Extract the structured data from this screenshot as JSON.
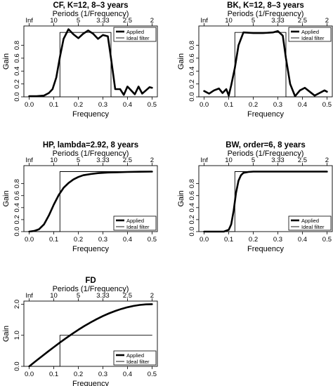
{
  "chart_data": [
    {
      "type": "line",
      "title": "CF, K=12, 8–3 years",
      "xlabel": "Frequency",
      "ylabel": "Gain",
      "toplabel": "Periods (1/Frequency)",
      "xlim": [
        0,
        0.5
      ],
      "ylim": [
        0,
        1.1
      ],
      "x_ticks": [
        "0.0",
        "0.1",
        "0.2",
        "0.3",
        "0.4",
        "0.5"
      ],
      "y_ticks": [
        "0.0",
        "0.2",
        "0.4",
        "0.6",
        "0.8"
      ],
      "top_ticks": [
        "Inf",
        "10",
        "5",
        "3.33",
        "2.5",
        "2"
      ],
      "legend": {
        "position": "top-right",
        "entries": [
          "Applied",
          "Ideal filter"
        ]
      },
      "cutoffs": [
        0.125,
        0.333
      ],
      "series": [
        {
          "name": "Applied",
          "x": [
            0,
            0.03,
            0.06,
            0.08,
            0.095,
            0.11,
            0.125,
            0.14,
            0.16,
            0.18,
            0.2,
            0.22,
            0.24,
            0.26,
            0.28,
            0.3,
            0.32,
            0.333,
            0.35,
            0.37,
            0.385,
            0.4,
            0.415,
            0.43,
            0.445,
            0.46,
            0.475,
            0.49,
            0.5
          ],
          "y": [
            0.01,
            0.01,
            0.02,
            0.06,
            0.12,
            0.3,
            0.62,
            0.9,
            1.05,
            0.97,
            0.91,
            0.98,
            1.03,
            0.98,
            0.9,
            0.96,
            0.94,
            0.6,
            0.12,
            0.12,
            0.03,
            0.16,
            0.1,
            0.04,
            0.16,
            0.05,
            0.1,
            0.15,
            0.14
          ]
        },
        {
          "name": "Ideal filter",
          "x": [
            0,
            0.125,
            0.125,
            0.333,
            0.333,
            0.5
          ],
          "y": [
            0,
            0,
            1,
            1,
            0,
            0
          ]
        }
      ]
    },
    {
      "type": "line",
      "title": "BK, K=12, 8–3 years",
      "xlabel": "Frequency",
      "ylabel": "Gain",
      "toplabel": "Periods (1/Frequency)",
      "xlim": [
        0,
        0.5
      ],
      "ylim": [
        0,
        1.1
      ],
      "x_ticks": [
        "0.0",
        "0.1",
        "0.2",
        "0.3",
        "0.4",
        "0.5"
      ],
      "y_ticks": [
        "0.0",
        "0.2",
        "0.4",
        "0.6",
        "0.8"
      ],
      "top_ticks": [
        "Inf",
        "10",
        "5",
        "3.33",
        "2.5",
        "2"
      ],
      "legend": {
        "position": "top-right",
        "entries": [
          "Applied",
          "Ideal filter"
        ]
      },
      "cutoffs": [
        0.125,
        0.333
      ],
      "series": [
        {
          "name": "Applied",
          "x": [
            0,
            0.02,
            0.04,
            0.06,
            0.075,
            0.09,
            0.1,
            0.11,
            0.125,
            0.14,
            0.16,
            0.2,
            0.24,
            0.28,
            0.3,
            0.32,
            0.333,
            0.35,
            0.37,
            0.39,
            0.41,
            0.43,
            0.45,
            0.47,
            0.49,
            0.5
          ],
          "y": [
            0.09,
            0.05,
            0.1,
            0.13,
            0.06,
            0.12,
            0.02,
            0.18,
            0.45,
            0.8,
            1.0,
            0.99,
            0.99,
            1.0,
            1.02,
            0.95,
            0.6,
            0.2,
            0.01,
            0.1,
            0.14,
            0.08,
            0.02,
            0.06,
            0.1,
            0.08
          ]
        },
        {
          "name": "Ideal filter",
          "x": [
            0,
            0.125,
            0.125,
            0.333,
            0.333,
            0.5
          ],
          "y": [
            0,
            0,
            1,
            1,
            0,
            0
          ]
        }
      ]
    },
    {
      "type": "line",
      "title": "HP, lambda=2.92, 8 years",
      "xlabel": "Frequency",
      "ylabel": "Gain",
      "toplabel": "Periods (1/Frequency)",
      "xlim": [
        0,
        0.5
      ],
      "ylim": [
        0,
        1.1
      ],
      "x_ticks": [
        "0.0",
        "0.1",
        "0.2",
        "0.3",
        "0.4",
        "0.5"
      ],
      "y_ticks": [
        "0.0",
        "0.2",
        "0.4",
        "0.6",
        "0.8"
      ],
      "top_ticks": [
        "Inf",
        "10",
        "5",
        "3.33",
        "2.5",
        "2"
      ],
      "legend": {
        "position": "bottom-right",
        "entries": [
          "Applied",
          "Ideal filter"
        ]
      },
      "cutoffs": [
        0.125
      ],
      "series": [
        {
          "name": "Applied",
          "x": [
            0,
            0.02,
            0.04,
            0.06,
            0.08,
            0.1,
            0.12,
            0.14,
            0.16,
            0.18,
            0.2,
            0.22,
            0.25,
            0.28,
            0.32,
            0.36,
            0.4,
            0.45,
            0.5
          ],
          "y": [
            0.0,
            0.01,
            0.04,
            0.12,
            0.27,
            0.45,
            0.61,
            0.73,
            0.81,
            0.87,
            0.91,
            0.94,
            0.96,
            0.975,
            0.985,
            0.99,
            0.995,
            0.998,
            1.0
          ]
        },
        {
          "name": "Ideal filter",
          "x": [
            0,
            0.125,
            0.125,
            0.5
          ],
          "y": [
            0,
            0,
            1,
            1
          ]
        }
      ]
    },
    {
      "type": "line",
      "title": "BW, order=6, 8 years",
      "xlabel": "Frequency",
      "ylabel": "Gain",
      "toplabel": "Periods (1/Frequency)",
      "xlim": [
        0,
        0.5
      ],
      "ylim": [
        0,
        1.1
      ],
      "x_ticks": [
        "0.0",
        "0.1",
        "0.2",
        "0.3",
        "0.4",
        "0.5"
      ],
      "y_ticks": [
        "0.0",
        "0.2",
        "0.4",
        "0.6",
        "0.8"
      ],
      "top_ticks": [
        "Inf",
        "10",
        "5",
        "3.33",
        "2.5",
        "2"
      ],
      "legend": {
        "position": "bottom-right",
        "entries": [
          "Applied",
          "Ideal filter"
        ]
      },
      "cutoffs": [
        0.125
      ],
      "series": [
        {
          "name": "Applied",
          "x": [
            0,
            0.08,
            0.1,
            0.11,
            0.12,
            0.125,
            0.13,
            0.14,
            0.15,
            0.16,
            0.18,
            0.2,
            0.25,
            0.3,
            0.4,
            0.5
          ],
          "y": [
            0.0,
            0.0,
            0.03,
            0.12,
            0.35,
            0.5,
            0.65,
            0.85,
            0.94,
            0.98,
            0.995,
            1.0,
            1.0,
            1.0,
            1.0,
            1.0
          ]
        },
        {
          "name": "Ideal filter",
          "x": [
            0,
            0.125,
            0.125,
            0.5
          ],
          "y": [
            0,
            0,
            1,
            1
          ]
        }
      ]
    },
    {
      "type": "line",
      "title": "FD",
      "xlabel": "Frequency",
      "ylabel": "Gain",
      "toplabel": "Periods (1/Frequency)",
      "xlim": [
        0,
        0.5
      ],
      "ylim": [
        0,
        2.1
      ],
      "x_ticks": [
        "0.0",
        "0.1",
        "0.2",
        "0.3",
        "0.4",
        "0.5"
      ],
      "y_ticks": [
        "0.0",
        "1.0",
        "2.0"
      ],
      "top_ticks": [
        "Inf",
        "10",
        "5",
        "3.33",
        "2.5",
        "2"
      ],
      "legend": {
        "position": "bottom-right",
        "entries": [
          "Applied",
          "Ideal filter"
        ]
      },
      "cutoffs": [
        0.125
      ],
      "series": [
        {
          "name": "Applied",
          "x": [
            0,
            0.025,
            0.05,
            0.075,
            0.1,
            0.125,
            0.15,
            0.175,
            0.2,
            0.225,
            0.25,
            0.275,
            0.3,
            0.325,
            0.35,
            0.375,
            0.4,
            0.425,
            0.45,
            0.475,
            0.5
          ],
          "y": [
            0.0,
            0.157,
            0.313,
            0.467,
            0.618,
            0.765,
            0.908,
            1.045,
            1.176,
            1.3,
            1.414,
            1.52,
            1.618,
            1.705,
            1.782,
            1.848,
            1.902,
            1.945,
            1.975,
            1.994,
            2.0
          ]
        },
        {
          "name": "Ideal filter",
          "x": [
            0,
            0.125,
            0.125,
            0.5
          ],
          "y": [
            0,
            0,
            1,
            1
          ]
        }
      ]
    }
  ]
}
